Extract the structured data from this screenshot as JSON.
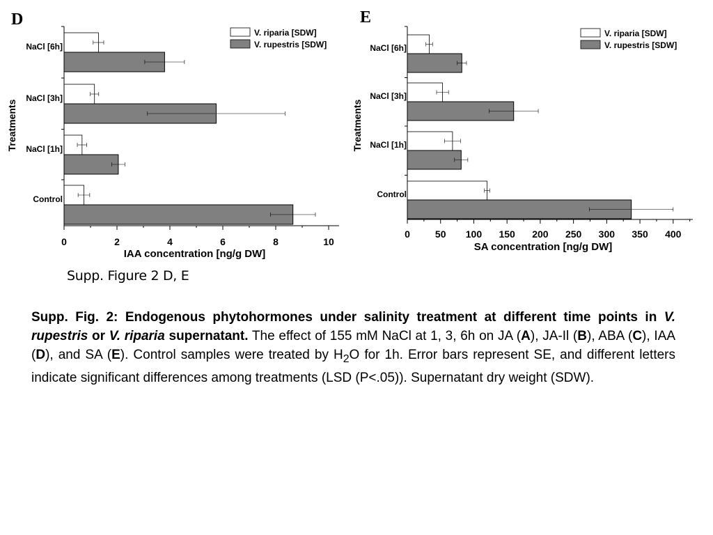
{
  "chart_data": [
    {
      "panel": "D",
      "type": "bar",
      "orientation": "horizontal",
      "ylabel": "Treatments",
      "xlabel": "IAA concentration [ng/g DW]",
      "categories": [
        "Control",
        "NaCl [1h]",
        "NaCl [3h]",
        "NaCl [6h]"
      ],
      "xlim": [
        0,
        10.3
      ],
      "xticks": [
        0,
        2,
        4,
        6,
        8,
        10
      ],
      "legend_position": "top-right",
      "series": [
        {
          "name": "V. riparia [SDW]",
          "color": "#ffffff",
          "values": [
            0.75,
            0.68,
            1.15,
            1.3
          ],
          "errors": [
            0.22,
            0.18,
            0.16,
            0.2
          ]
        },
        {
          "name": "V. rupestris [SDW]",
          "color": "#808080",
          "values": [
            8.65,
            2.05,
            5.75,
            3.8
          ],
          "errors": [
            0.85,
            0.25,
            2.6,
            0.75
          ]
        }
      ]
    },
    {
      "panel": "E",
      "type": "bar",
      "orientation": "horizontal",
      "ylabel": "Treatments",
      "xlabel": "SA concentration [ng/g DW]",
      "categories": [
        "Control",
        "NaCl [1h]",
        "NaCl [3h]",
        "NaCl [6h]"
      ],
      "xlim": [
        0,
        430
      ],
      "xticks": [
        0,
        50,
        100,
        150,
        200,
        250,
        300,
        350,
        400
      ],
      "legend_position": "top-right",
      "series": [
        {
          "name": "V. riparia [SDW]",
          "color": "#ffffff",
          "values": [
            120,
            68,
            53,
            33
          ],
          "errors": [
            4,
            12,
            9,
            5
          ]
        },
        {
          "name": "V. rupestris [SDW]",
          "color": "#808080",
          "values": [
            337,
            81,
            160,
            82
          ],
          "errors": [
            63,
            10,
            37,
            7
          ]
        }
      ]
    }
  ],
  "figure_label": "Supp. Figure 2 D, E",
  "caption": {
    "bold_a": "Supp. Fig. 2: Endogenous phytohormones under salinity treatment at different time points in ",
    "species_1": "V. rupestris",
    "bold_or": " or ",
    "species_2": "V. riparia",
    "bold_end": " supernatant.",
    "text_1": "  The effect of 155 mM NaCl at 1, 3, 6h on JA (",
    "letter_a": "A",
    "text_2": "), JA-Il (",
    "letter_b": "B",
    "text_3": "), ABA (",
    "letter_c": "C",
    "text_4": "), IAA (",
    "letter_d": "D",
    "text_5": "), and SA (",
    "letter_e": "E",
    "text_6": "). Control samples were treated by H",
    "subscript": "2",
    "text_7": "O for 1h. Error bars represent SE, and different letters indicate significant differences among treatments (LSD (P<.05)). Supernatant dry weight (SDW)."
  }
}
